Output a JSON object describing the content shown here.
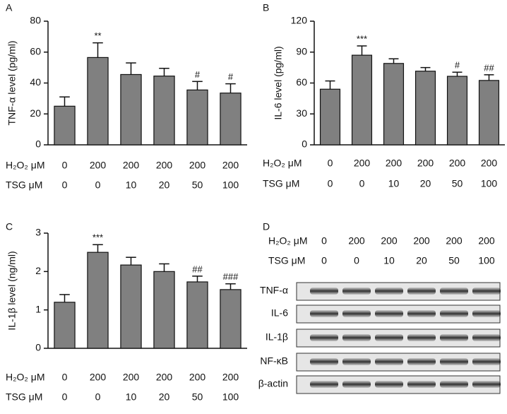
{
  "chart_data": [
    {
      "type": "bar",
      "panel_label": "A",
      "y_label": "TNF-α level (pg/ml)",
      "color": "#808080",
      "category_rows": [
        "H₂O₂ μM",
        "TSG μM"
      ],
      "categories": [
        [
          "0",
          "0"
        ],
        [
          "200",
          "0"
        ],
        [
          "200",
          "10"
        ],
        [
          "200",
          "20"
        ],
        [
          "200",
          "50"
        ],
        [
          "200",
          "100"
        ]
      ],
      "values": [
        25,
        56.5,
        45.5,
        44.5,
        35.5,
        33.5
      ],
      "errors": [
        6,
        9.5,
        7.5,
        5,
        5.5,
        6
      ],
      "significance": [
        null,
        "**",
        null,
        null,
        "#",
        "#"
      ],
      "ylim": [
        0,
        80
      ],
      "yticks": [
        0,
        20,
        40,
        60,
        80
      ]
    },
    {
      "type": "bar",
      "panel_label": "B",
      "y_label": "IL-6 level (pg/ml)",
      "color": "#808080",
      "category_rows": [
        "H₂O₂ μM",
        "TSG μM"
      ],
      "categories": [
        [
          "0",
          "0"
        ],
        [
          "200",
          "0"
        ],
        [
          "200",
          "10"
        ],
        [
          "200",
          "20"
        ],
        [
          "200",
          "50"
        ],
        [
          "200",
          "100"
        ]
      ],
      "values": [
        54,
        87,
        79,
        71.5,
        66.5,
        62.5
      ],
      "errors": [
        8,
        9,
        4.5,
        3.5,
        4,
        5.5
      ],
      "significance": [
        null,
        "***",
        null,
        null,
        "#",
        "##"
      ],
      "ylim": [
        0,
        120
      ],
      "yticks": [
        0,
        30,
        60,
        90,
        120
      ]
    },
    {
      "type": "bar",
      "panel_label": "C",
      "y_label": "IL-1β level (ng/ml)",
      "color": "#808080",
      "category_rows": [
        "H₂O₂ μM",
        "TSG μM"
      ],
      "categories": [
        [
          "0",
          "0"
        ],
        [
          "200",
          "0"
        ],
        [
          "200",
          "10"
        ],
        [
          "200",
          "20"
        ],
        [
          "200",
          "50"
        ],
        [
          "200",
          "100"
        ]
      ],
      "values": [
        1.2,
        2.5,
        2.17,
        2.0,
        1.73,
        1.53
      ],
      "errors": [
        0.2,
        0.2,
        0.2,
        0.2,
        0.15,
        0.15
      ],
      "significance": [
        null,
        "***",
        null,
        null,
        "##",
        "###"
      ],
      "ylim": [
        0,
        3
      ],
      "yticks": [
        0,
        1,
        2,
        3
      ]
    }
  ],
  "blot_panel": {
    "panel_label": "D",
    "row_labels": [
      "H₂O₂ μM",
      "TSG μM"
    ],
    "lanes": [
      [
        "0",
        "0"
      ],
      [
        "200",
        "0"
      ],
      [
        "200",
        "10"
      ],
      [
        "200",
        "20"
      ],
      [
        "200",
        "50"
      ],
      [
        "200",
        "100"
      ]
    ],
    "bands": [
      "TNF-α",
      "IL-6",
      "IL-1β",
      "NF-κB",
      "β-actin"
    ]
  }
}
